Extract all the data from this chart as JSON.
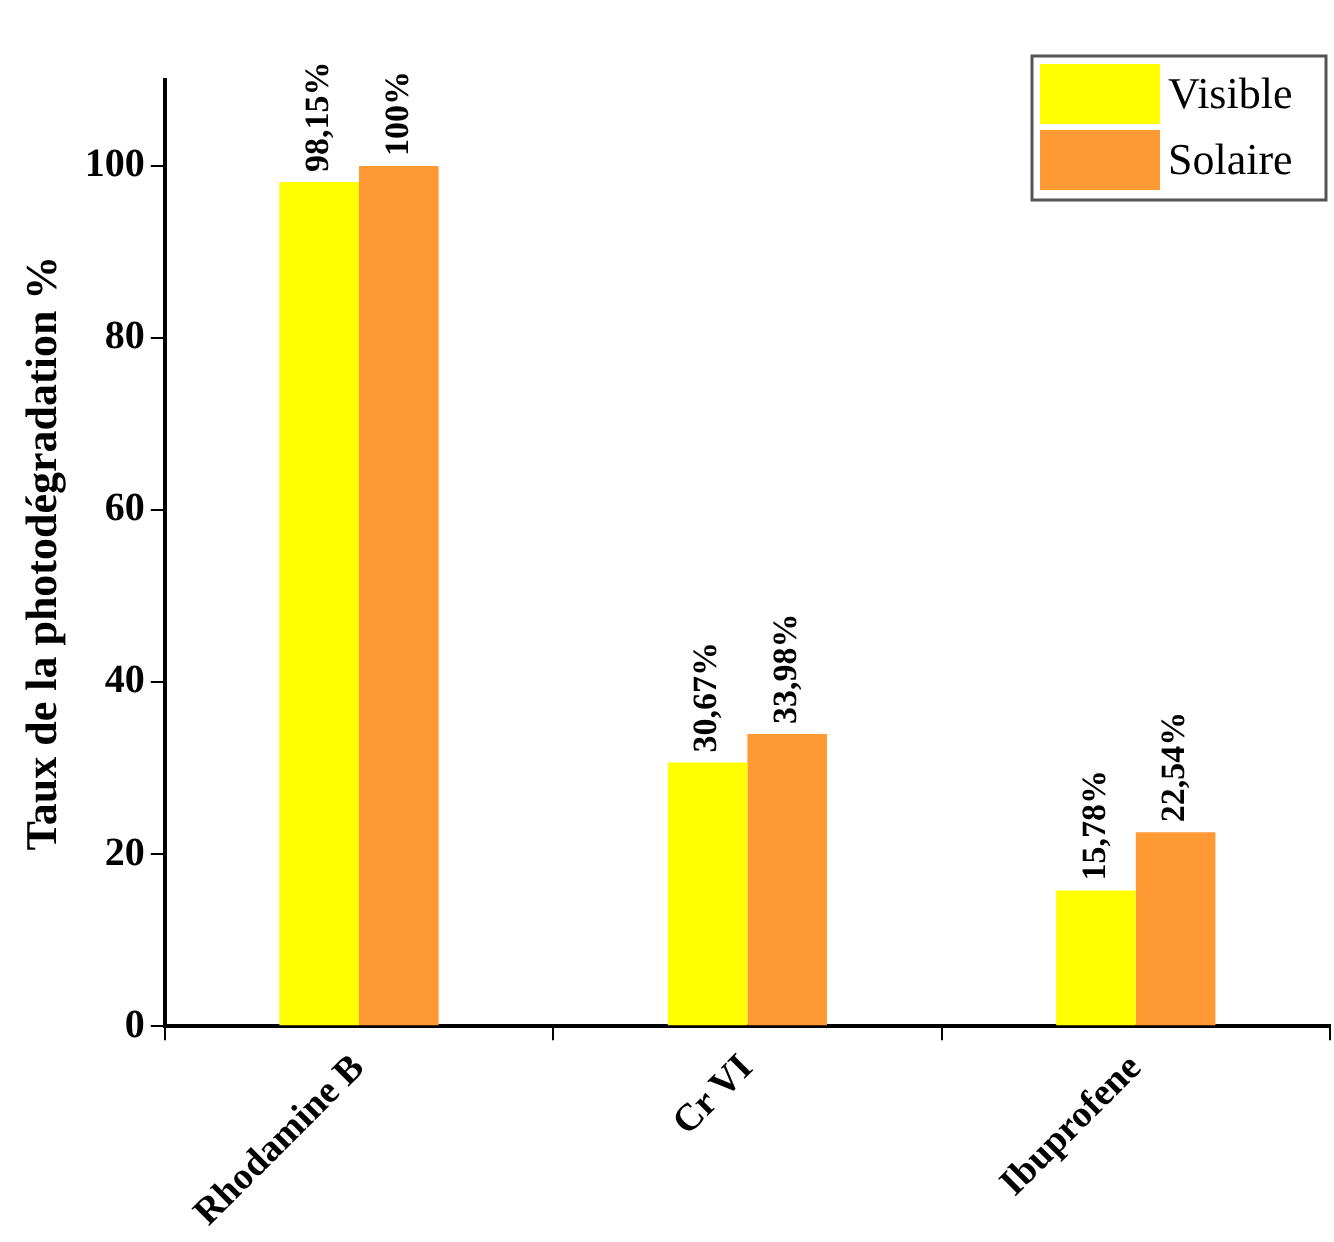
{
  "chart_data": {
    "type": "bar",
    "ylabel": "Taux de la photodégradation %",
    "categories": [
      "Rhodamine B",
      "Cr VI",
      "Ibuprofene"
    ],
    "series": [
      {
        "name": "Visible",
        "color": "#ffff00",
        "values": [
          98.15,
          30.67,
          15.78
        ],
        "value_labels": [
          "98,15%",
          "30,67%",
          "15,78%"
        ]
      },
      {
        "name": "Solaire",
        "color": "#ff9933",
        "values": [
          100,
          33.98,
          22.54
        ],
        "value_labels": [
          "100%",
          "33,98%",
          "22,54%"
        ]
      }
    ],
    "ylim": [
      0,
      110
    ],
    "yticks": [
      0,
      20,
      40,
      60,
      80,
      100
    ],
    "grid": false,
    "legend": "top right"
  }
}
